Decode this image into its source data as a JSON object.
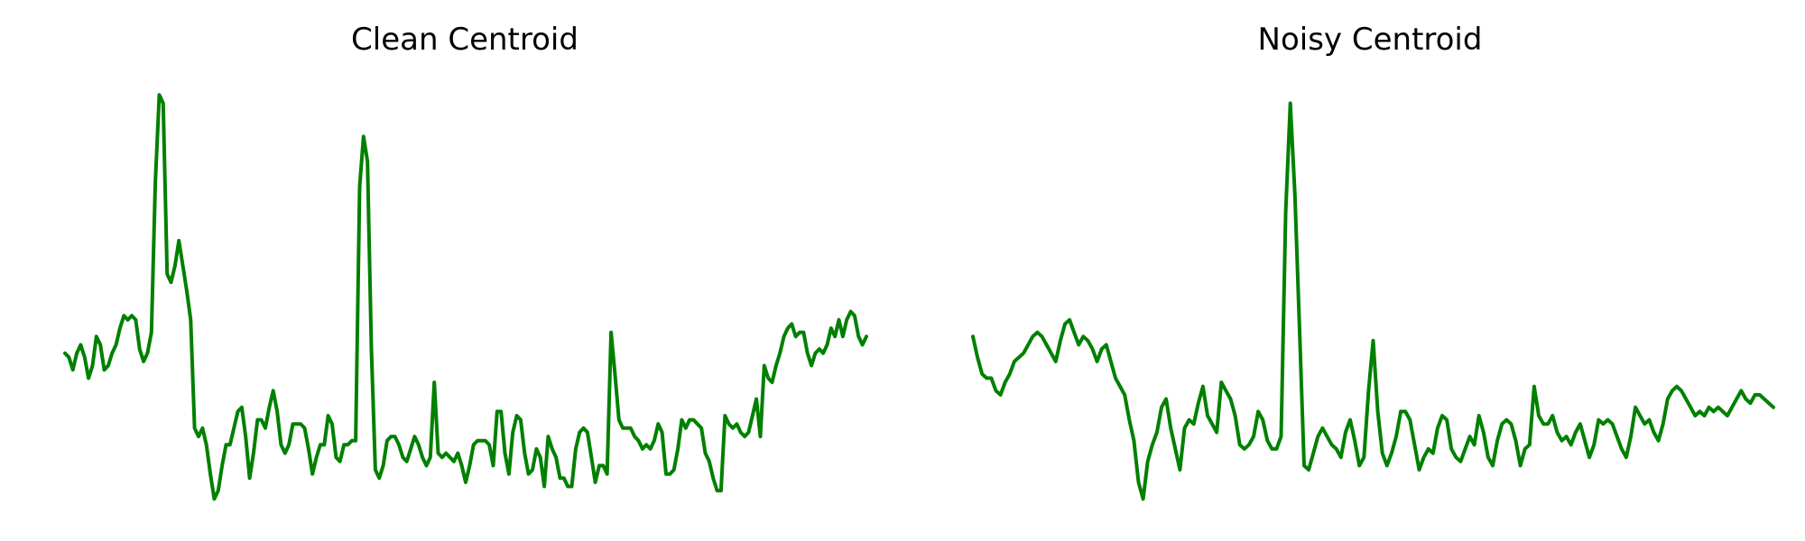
{
  "chart_data": [
    {
      "type": "line",
      "title": "Clean Centroid",
      "axes_visible": false,
      "grid": false,
      "color": "#008000",
      "y": [
        0.36,
        0.35,
        0.32,
        0.36,
        0.38,
        0.35,
        0.3,
        0.33,
        0.4,
        0.38,
        0.32,
        0.33,
        0.36,
        0.38,
        0.42,
        0.45,
        0.44,
        0.45,
        0.44,
        0.37,
        0.34,
        0.36,
        0.41,
        0.77,
        0.98,
        0.96,
        0.55,
        0.53,
        0.57,
        0.63,
        0.57,
        0.51,
        0.44,
        0.18,
        0.16,
        0.18,
        0.14,
        0.07,
        0.01,
        0.03,
        0.09,
        0.14,
        0.14,
        0.18,
        0.22,
        0.23,
        0.16,
        0.06,
        0.12,
        0.2,
        0.2,
        0.18,
        0.23,
        0.27,
        0.22,
        0.14,
        0.12,
        0.14,
        0.19,
        0.19,
        0.19,
        0.18,
        0.13,
        0.07,
        0.11,
        0.14,
        0.14,
        0.21,
        0.19,
        0.11,
        0.1,
        0.14,
        0.14,
        0.15,
        0.15,
        0.76,
        0.88,
        0.82,
        0.37,
        0.08,
        0.06,
        0.09,
        0.15,
        0.16,
        0.16,
        0.14,
        0.11,
        0.1,
        0.13,
        0.16,
        0.14,
        0.11,
        0.09,
        0.11,
        0.29,
        0.12,
        0.11,
        0.12,
        0.11,
        0.1,
        0.12,
        0.09,
        0.05,
        0.09,
        0.14,
        0.15,
        0.15,
        0.15,
        0.14,
        0.09,
        0.22,
        0.22,
        0.12,
        0.07,
        0.17,
        0.21,
        0.2,
        0.12,
        0.07,
        0.08,
        0.13,
        0.11,
        0.04,
        0.16,
        0.13,
        0.11,
        0.06,
        0.06,
        0.04,
        0.04,
        0.13,
        0.17,
        0.18,
        0.17,
        0.11,
        0.05,
        0.09,
        0.09,
        0.07,
        0.41,
        0.31,
        0.2,
        0.18,
        0.18,
        0.18,
        0.16,
        0.15,
        0.13,
        0.14,
        0.13,
        0.15,
        0.19,
        0.17,
        0.07,
        0.07,
        0.08,
        0.13,
        0.2,
        0.18,
        0.2,
        0.2,
        0.19,
        0.18,
        0.12,
        0.1,
        0.06,
        0.03,
        0.03,
        0.21,
        0.19,
        0.18,
        0.19,
        0.17,
        0.16,
        0.17,
        0.21,
        0.25,
        0.16,
        0.33,
        0.3,
        0.29,
        0.33,
        0.36,
        0.4,
        0.42,
        0.43,
        0.4,
        0.41,
        0.41,
        0.36,
        0.33,
        0.36,
        0.37,
        0.36,
        0.38,
        0.42,
        0.4,
        0.44,
        0.4,
        0.44,
        0.46,
        0.45,
        0.4,
        0.38,
        0.4
      ]
    },
    {
      "type": "line",
      "title": "Noisy Centroid",
      "axes_visible": false,
      "grid": false,
      "color": "#008000",
      "y": [
        0.4,
        0.35,
        0.31,
        0.3,
        0.3,
        0.27,
        0.26,
        0.29,
        0.31,
        0.34,
        0.35,
        0.36,
        0.38,
        0.4,
        0.41,
        0.4,
        0.38,
        0.36,
        0.34,
        0.39,
        0.43,
        0.44,
        0.41,
        0.38,
        0.4,
        0.39,
        0.37,
        0.34,
        0.37,
        0.38,
        0.34,
        0.3,
        0.28,
        0.26,
        0.2,
        0.15,
        0.05,
        0.01,
        0.1,
        0.14,
        0.17,
        0.23,
        0.25,
        0.18,
        0.13,
        0.08,
        0.18,
        0.2,
        0.19,
        0.24,
        0.28,
        0.21,
        0.19,
        0.17,
        0.29,
        0.27,
        0.25,
        0.21,
        0.14,
        0.13,
        0.14,
        0.16,
        0.22,
        0.2,
        0.15,
        0.13,
        0.13,
        0.16,
        0.7,
        0.96,
        0.74,
        0.42,
        0.09,
        0.08,
        0.12,
        0.16,
        0.18,
        0.16,
        0.14,
        0.13,
        0.11,
        0.17,
        0.2,
        0.15,
        0.09,
        0.11,
        0.27,
        0.39,
        0.22,
        0.12,
        0.09,
        0.12,
        0.16,
        0.22,
        0.22,
        0.2,
        0.14,
        0.08,
        0.11,
        0.13,
        0.12,
        0.18,
        0.21,
        0.2,
        0.13,
        0.11,
        0.1,
        0.13,
        0.16,
        0.14,
        0.21,
        0.17,
        0.11,
        0.09,
        0.15,
        0.19,
        0.2,
        0.19,
        0.15,
        0.09,
        0.13,
        0.14,
        0.28,
        0.21,
        0.19,
        0.19,
        0.21,
        0.17,
        0.15,
        0.16,
        0.14,
        0.17,
        0.19,
        0.15,
        0.11,
        0.14,
        0.2,
        0.19,
        0.2,
        0.19,
        0.16,
        0.13,
        0.11,
        0.16,
        0.23,
        0.21,
        0.19,
        0.2,
        0.17,
        0.15,
        0.19,
        0.25,
        0.27,
        0.28,
        0.27,
        0.25,
        0.23,
        0.21,
        0.22,
        0.21,
        0.23,
        0.22,
        0.23,
        0.22,
        0.21,
        0.23,
        0.25,
        0.27,
        0.25,
        0.24,
        0.26,
        0.26,
        0.25,
        0.24,
        0.23
      ]
    }
  ]
}
